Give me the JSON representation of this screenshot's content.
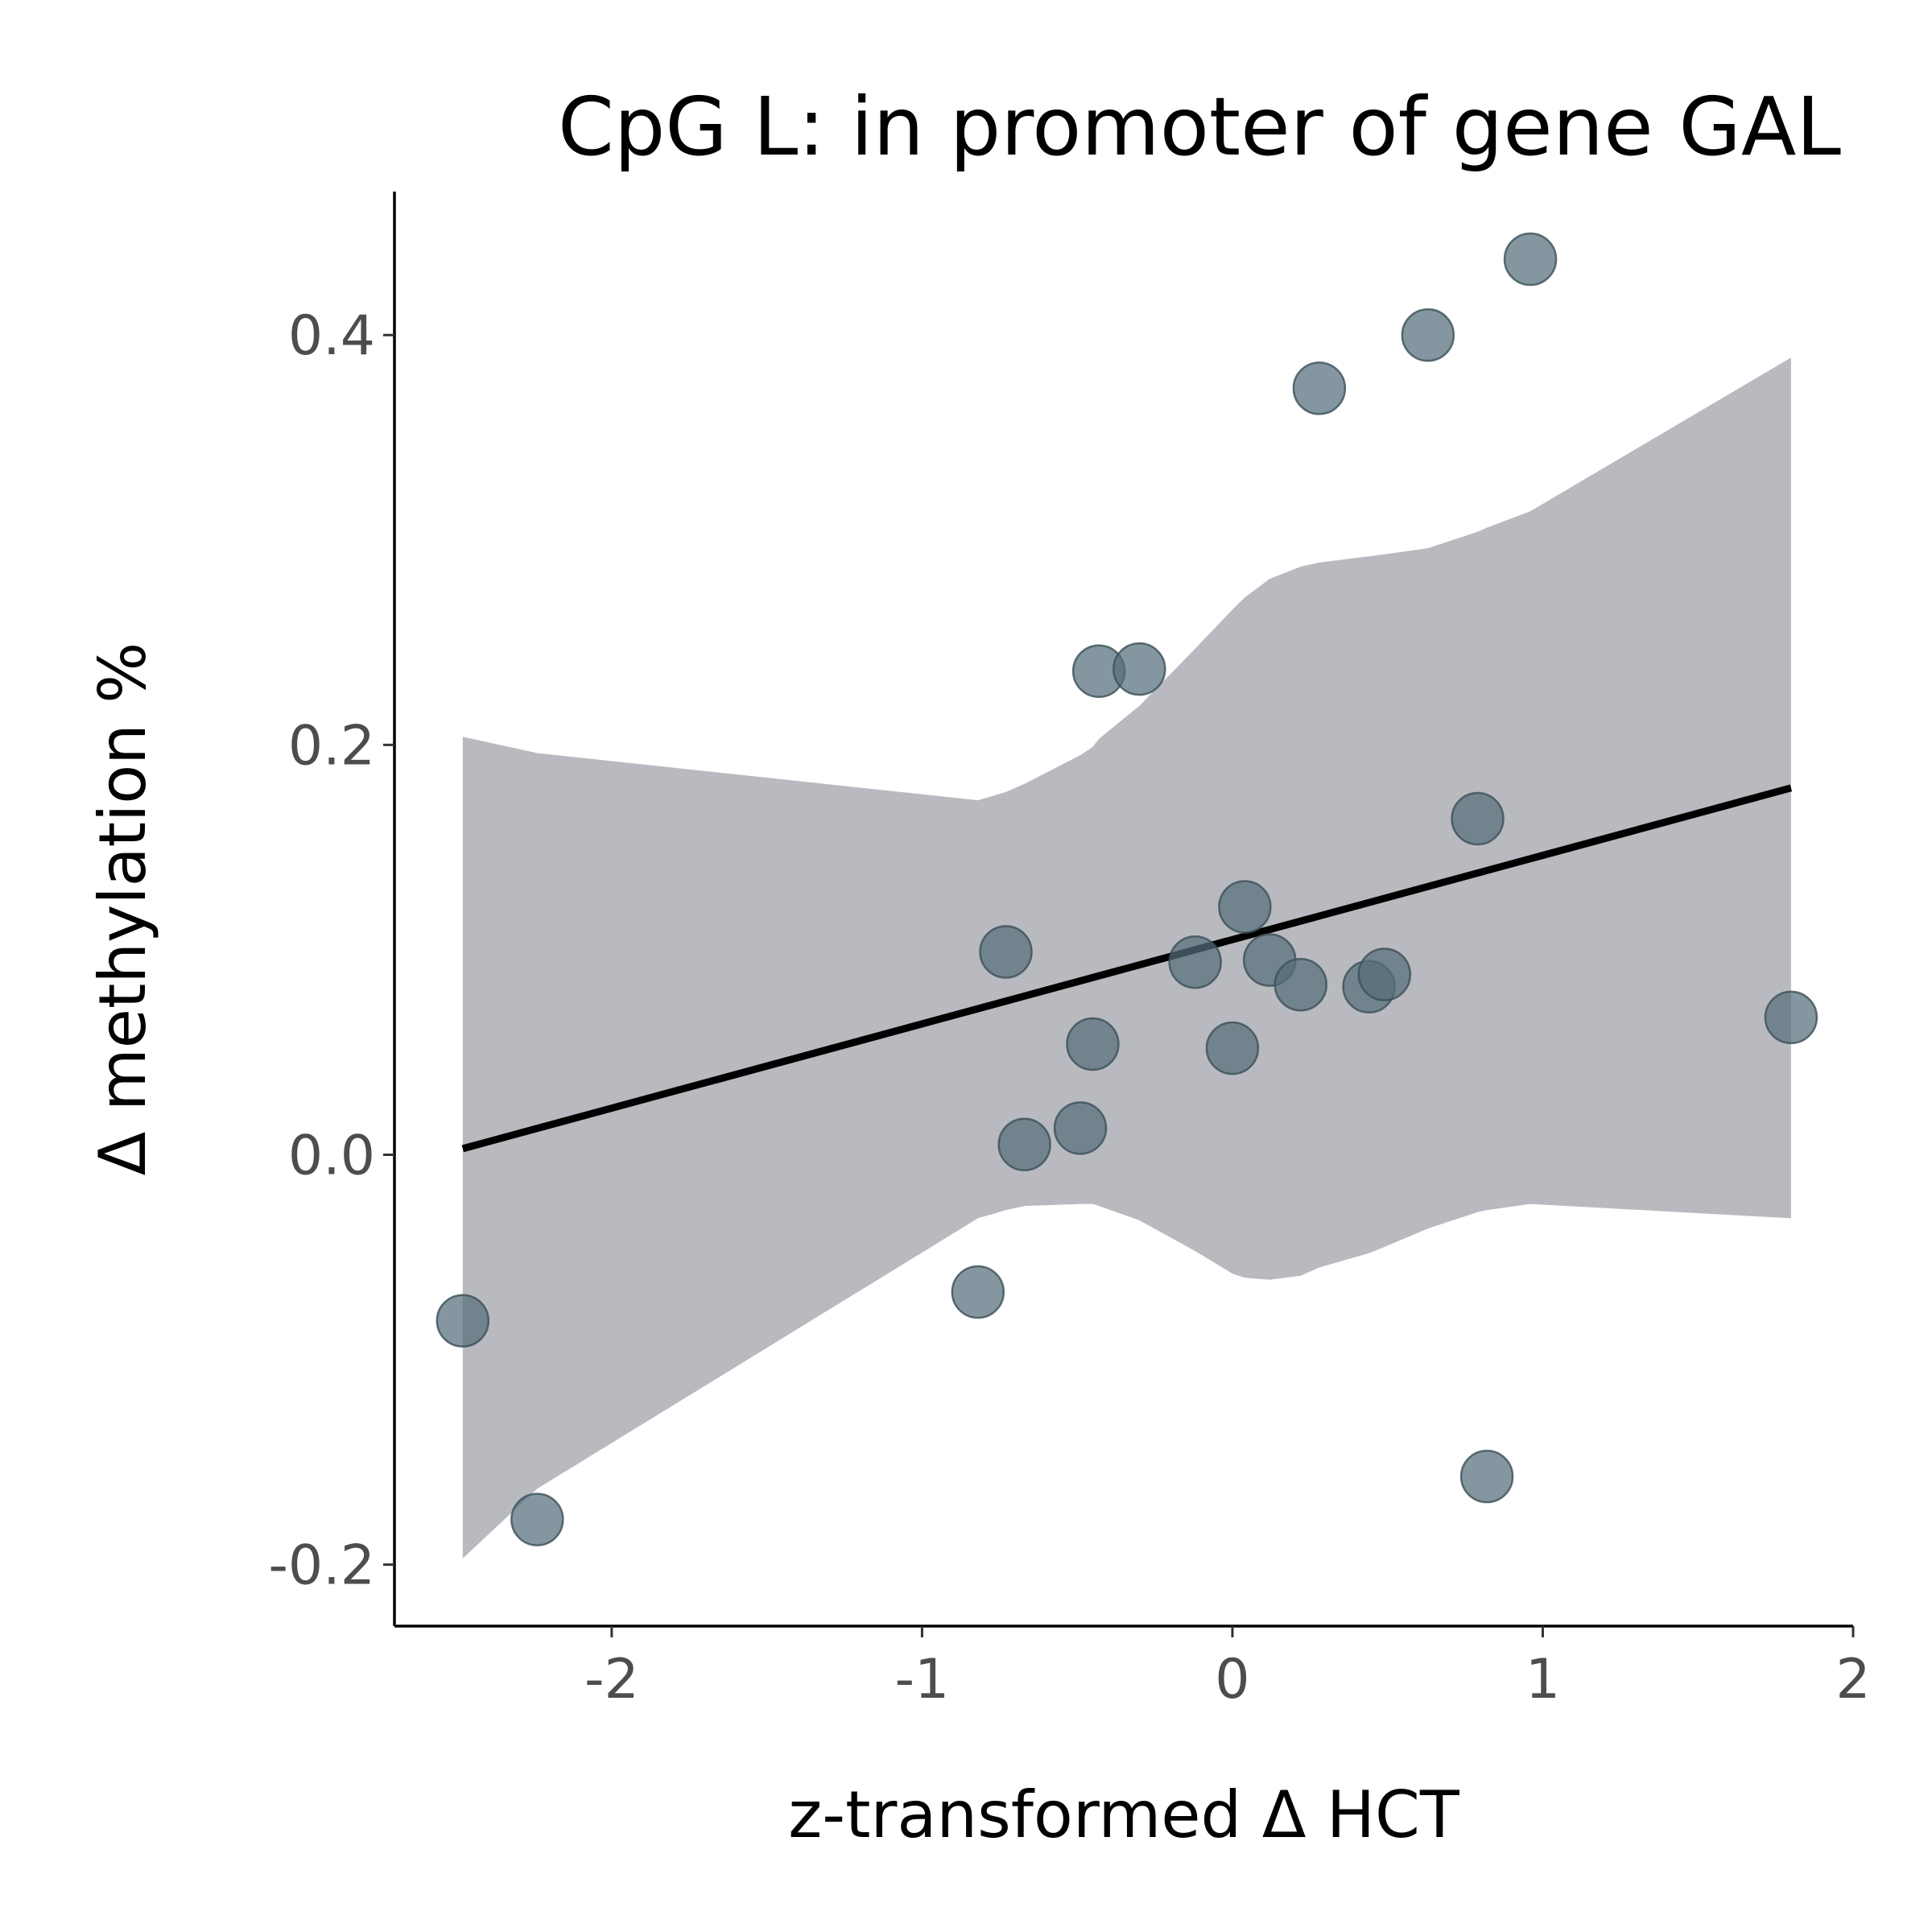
{
  "chart_data": {
    "type": "scatter",
    "title": "CpG L: in promoter of gene GAL",
    "xlabel": "z-transformed Δ HCT",
    "ylabel": "Δ methylation %",
    "xlim": [
      -2.7,
      2.0
    ],
    "ylim": [
      -0.23,
      0.47
    ],
    "x_ticks": [
      -2,
      -1,
      0,
      1,
      2
    ],
    "x_tick_labels": [
      "-2",
      "-1",
      "0",
      "1",
      "2"
    ],
    "y_ticks": [
      -0.2,
      0.0,
      0.2,
      0.4
    ],
    "y_tick_labels": [
      "-0.2",
      "0.0",
      "0.2",
      "0.4"
    ],
    "grid": false,
    "legend": "none",
    "colors": {
      "point_fill": "#546e7a",
      "point_stroke": "#3b4f58",
      "band_fill": "#b9babf",
      "trend_line": "#000000"
    },
    "points": [
      {
        "x": -2.48,
        "y": -0.081
      },
      {
        "x": -2.24,
        "y": -0.178
      },
      {
        "x": -0.82,
        "y": -0.067
      },
      {
        "x": -0.73,
        "y": 0.099
      },
      {
        "x": -0.67,
        "y": 0.005
      },
      {
        "x": -0.49,
        "y": 0.013
      },
      {
        "x": -0.45,
        "y": 0.054
      },
      {
        "x": -0.43,
        "y": 0.236
      },
      {
        "x": -0.3,
        "y": 0.237
      },
      {
        "x": -0.12,
        "y": 0.094
      },
      {
        "x": 0.0,
        "y": 0.052
      },
      {
        "x": 0.04,
        "y": 0.121
      },
      {
        "x": 0.12,
        "y": 0.095
      },
      {
        "x": 0.22,
        "y": 0.083
      },
      {
        "x": 0.28,
        "y": 0.374
      },
      {
        "x": 0.44,
        "y": 0.082
      },
      {
        "x": 0.49,
        "y": 0.088
      },
      {
        "x": 0.63,
        "y": 0.4
      },
      {
        "x": 0.79,
        "y": 0.164
      },
      {
        "x": 0.82,
        "y": -0.157
      },
      {
        "x": 0.96,
        "y": 0.437
      },
      {
        "x": 1.8,
        "y": 0.067
      }
    ],
    "trend_line": {
      "x": [
        -2.48,
        1.8
      ],
      "y": [
        0.003,
        0.179
      ]
    },
    "confidence_band": {
      "x": [
        -2.48,
        -2.24,
        -0.82,
        -0.73,
        -0.67,
        -0.49,
        -0.45,
        -0.43,
        -0.3,
        -0.12,
        0.0,
        0.04,
        0.12,
        0.22,
        0.28,
        0.44,
        0.49,
        0.63,
        0.79,
        0.82,
        0.96,
        1.8
      ],
      "upper": [
        0.204,
        0.196,
        0.173,
        0.177,
        0.181,
        0.195,
        0.199,
        0.203,
        0.219,
        0.247,
        0.266,
        0.272,
        0.281,
        0.287,
        0.289,
        0.292,
        0.293,
        0.296,
        0.304,
        0.306,
        0.314,
        0.389
      ],
      "lower": [
        -0.197,
        -0.163,
        -0.031,
        -0.027,
        -0.025,
        -0.024,
        -0.024,
        -0.025,
        -0.032,
        -0.047,
        -0.058,
        -0.06,
        -0.061,
        -0.059,
        -0.055,
        -0.048,
        -0.045,
        -0.036,
        -0.028,
        -0.027,
        -0.024,
        -0.031
      ]
    }
  }
}
